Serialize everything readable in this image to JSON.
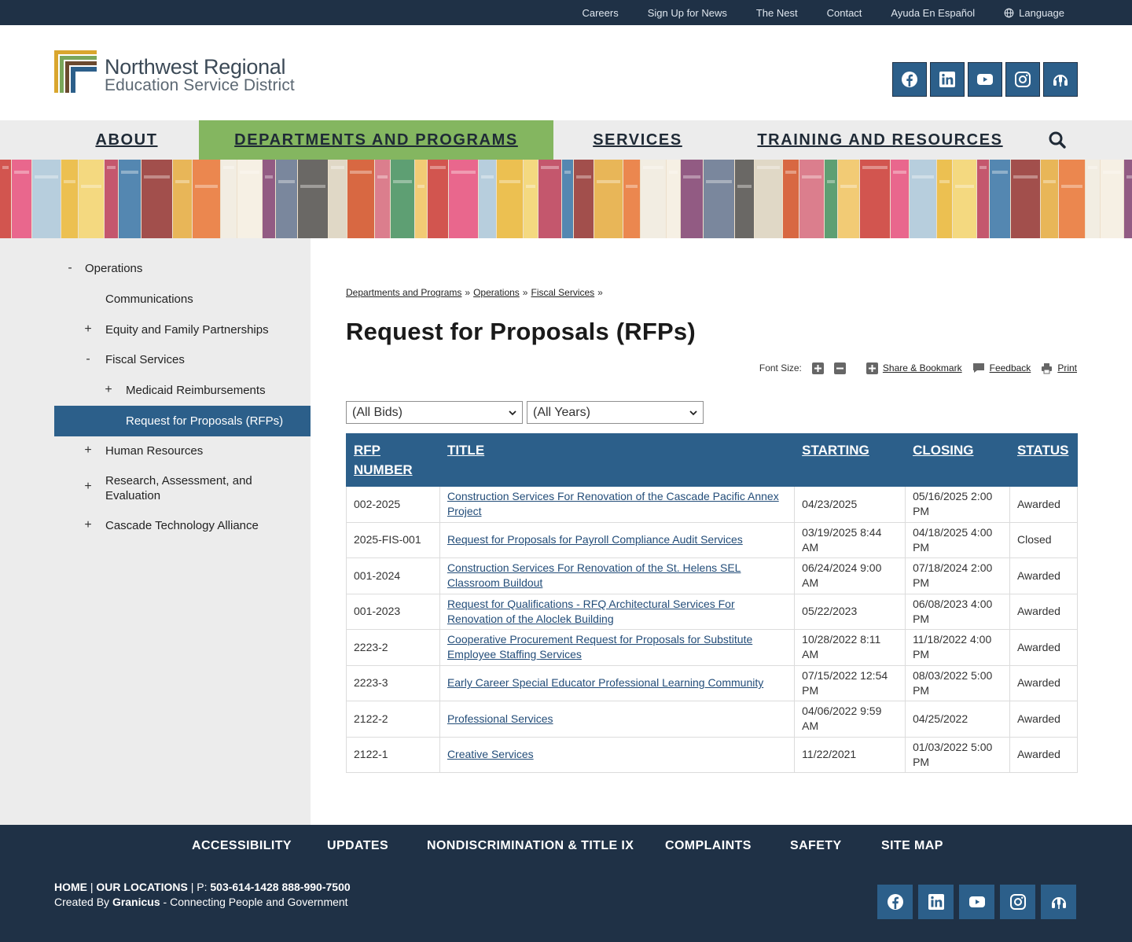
{
  "utility_nav": [
    "Careers",
    "Sign Up for News",
    "The Nest",
    "Contact",
    "Ayuda En Español",
    "Language"
  ],
  "brand": {
    "line1": "Northwest Regional",
    "line2": "Education Service District",
    "colors": {
      "gold": "#d9a62e",
      "green": "#7aa65a",
      "brown": "#6b4a2f",
      "blue": "#2c5f8a"
    }
  },
  "social_icons": [
    "facebook-icon",
    "linkedin-icon",
    "youtube-icon",
    "instagram-icon",
    "podcast-icon"
  ],
  "main_nav": {
    "about": "ABOUT",
    "departments": "DEPARTMENTS AND PROGRAMS",
    "services": "SERVICES",
    "training": "TRAINING AND RESOURCES"
  },
  "sidebar": {
    "operations": "Operations",
    "communications": "Communications",
    "equity": "Equity and Family Partnerships",
    "fiscal": "Fiscal Services",
    "medicaid": "Medicaid Reimbursements",
    "rfps": "Request for Proposals (RFPs)",
    "hr": "Human Resources",
    "research1": "Research, Assessment, and",
    "research2": "Evaluation",
    "cta": "Cascade Technology Alliance"
  },
  "breadcrumb": {
    "c1": "Departments and Programs",
    "c2": "Operations",
    "c3": "Fiscal Services",
    "sep": "»"
  },
  "page_title": "Request for Proposals (RFPs)",
  "tools": {
    "font_size": "Font Size:",
    "share": "Share & Bookmark",
    "feedback": "Feedback",
    "print": "Print"
  },
  "filters": {
    "bids": "(All Bids)",
    "years": "(All Years)"
  },
  "table": {
    "headers": {
      "number1": "RFP",
      "number2": "NUMBER",
      "title": "TITLE",
      "starting": "STARTING",
      "closing": "CLOSING",
      "status": "STATUS"
    },
    "rows": [
      {
        "number": "002-2025",
        "title": "Construction Services For Renovation of the Cascade Pacific Annex Project",
        "starting": "04/23/2025",
        "closing": "05/16/2025 2:00 PM",
        "status": "Awarded"
      },
      {
        "number": "2025-FIS-001",
        "title": "Request for Proposals for Payroll Compliance Audit Services",
        "starting": "03/19/2025 8:44 AM",
        "closing": "04/18/2025 4:00 PM",
        "status": "Closed"
      },
      {
        "number": "001-2024",
        "title": "Construction Services For Renovation of the St. Helens SEL Classroom Buildout",
        "starting": "06/24/2024 9:00 AM",
        "closing": "07/18/2024 2:00 PM",
        "status": "Awarded"
      },
      {
        "number": "001-2023",
        "title": "Request for Qualifications - RFQ Architectural Services For Renovation of the Aloclek Building",
        "starting": "05/22/2023",
        "closing": "06/08/2023 4:00 PM",
        "status": "Awarded"
      },
      {
        "number": "2223-2",
        "title": "Cooperative Procurement Request for Proposals for Substitute Employee Staffing Services",
        "starting": "10/28/2022 8:11 AM",
        "closing": "11/18/2022 4:00 PM",
        "status": "Awarded"
      },
      {
        "number": "2223-3",
        "title": "Early Career Special Educator Professional Learning Community",
        "starting": "07/15/2022 12:54 PM",
        "closing": "08/03/2022 5:00 PM",
        "status": "Awarded"
      },
      {
        "number": "2122-2",
        "title": "Professional Services",
        "starting": "04/06/2022 9:59 AM",
        "closing": "04/25/2022",
        "status": "Awarded"
      },
      {
        "number": "2122-1",
        "title": "Creative Services",
        "starting": "11/22/2021",
        "closing": "01/03/2022 5:00 PM",
        "status": "Awarded"
      }
    ]
  },
  "footer": {
    "nav": [
      "ACCESSIBILITY",
      "UPDATES",
      "NONDISCRIMINATION & TITLE IX",
      "COMPLAINTS",
      "SAFETY",
      "SITE MAP"
    ],
    "home": "HOME",
    "locations": "OUR LOCATIONS",
    "phone_label": "P:",
    "phones": "503-614-1428 888-990-7500",
    "created_by": "Created By",
    "granicus": "Granicus",
    "tagline": "- Connecting People and Government",
    "sep": "|"
  }
}
